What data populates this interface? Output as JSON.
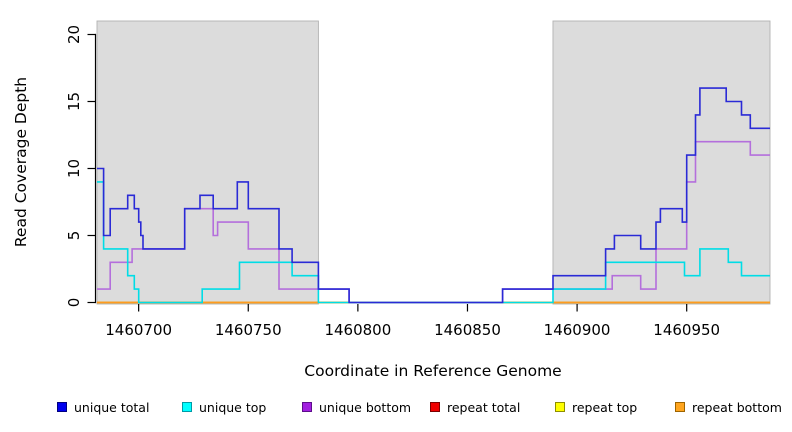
{
  "chart_data": {
    "type": "line",
    "subtype": "step",
    "title": "",
    "xlabel": "Coordinate in Reference Genome",
    "ylabel": "Read Coverage Depth",
    "xlim": [
      1460681,
      1460988
    ],
    "ylim": [
      0,
      21
    ],
    "xticks": [
      1460700,
      1460750,
      1460800,
      1460850,
      1460900,
      1460950
    ],
    "yticks": [
      0,
      5,
      10,
      15,
      20
    ],
    "grid": "off",
    "legend_position": "bottom",
    "plot_background": "#FFFFFF",
    "shade_color": "#DCDCDC",
    "shade_border_color": "#B2B2B2",
    "shaded_regions": [
      {
        "name": "left-flank",
        "from": 1460681,
        "to": 1460782
      },
      {
        "name": "right-flank",
        "from": 1460889,
        "to": 1460988
      }
    ],
    "series": [
      {
        "name": "unique total",
        "line_color": "#2A2AD6",
        "legend_fill": "#0000EE",
        "legend_border": "#000080",
        "zorder": 6,
        "points": [
          [
            1460681,
            10
          ],
          [
            1460684,
            5
          ],
          [
            1460687,
            7
          ],
          [
            1460695,
            8
          ],
          [
            1460698,
            7
          ],
          [
            1460700,
            6
          ],
          [
            1460701,
            5
          ],
          [
            1460702,
            4
          ],
          [
            1460721,
            7
          ],
          [
            1460728,
            8
          ],
          [
            1460734,
            7
          ],
          [
            1460745,
            9
          ],
          [
            1460750,
            7
          ],
          [
            1460764,
            4
          ],
          [
            1460770,
            3
          ],
          [
            1460782,
            1
          ],
          [
            1460796,
            0
          ],
          [
            1460866,
            1
          ],
          [
            1460889,
            2
          ],
          [
            1460913,
            4
          ],
          [
            1460917,
            5
          ],
          [
            1460929,
            4
          ],
          [
            1460936,
            6
          ],
          [
            1460938,
            7
          ],
          [
            1460948,
            6
          ],
          [
            1460950,
            11
          ],
          [
            1460954,
            14
          ],
          [
            1460956,
            16
          ],
          [
            1460968,
            15
          ],
          [
            1460975,
            14
          ],
          [
            1460979,
            13
          ],
          [
            1460988,
            13
          ]
        ]
      },
      {
        "name": "unique top",
        "line_color": "#00DDE6",
        "legend_fill": "#00FFFF",
        "legend_border": "#009AA6",
        "zorder": 5,
        "points": [
          [
            1460681,
            9
          ],
          [
            1460684,
            4
          ],
          [
            1460695,
            2
          ],
          [
            1460698,
            1
          ],
          [
            1460700,
            0
          ],
          [
            1460729,
            1
          ],
          [
            1460746,
            3
          ],
          [
            1460770,
            2
          ],
          [
            1460782,
            0
          ],
          [
            1460889,
            1
          ],
          [
            1460913,
            3
          ],
          [
            1460949,
            2
          ],
          [
            1460956,
            4
          ],
          [
            1460969,
            3
          ],
          [
            1460975,
            2
          ],
          [
            1460988,
            2
          ]
        ]
      },
      {
        "name": "unique bottom",
        "line_color": "#B46FDC",
        "legend_fill": "#A21FE0",
        "legend_border": "#5D0E8B",
        "zorder": 4,
        "points": [
          [
            1460681,
            1
          ],
          [
            1460687,
            3
          ],
          [
            1460697,
            4
          ],
          [
            1460721,
            7
          ],
          [
            1460734,
            5
          ],
          [
            1460736,
            6
          ],
          [
            1460750,
            4
          ],
          [
            1460764,
            1
          ],
          [
            1460796,
            0
          ],
          [
            1460866,
            1
          ],
          [
            1460916,
            2
          ],
          [
            1460929,
            1
          ],
          [
            1460936,
            4
          ],
          [
            1460950,
            9
          ],
          [
            1460954,
            12
          ],
          [
            1460979,
            11
          ],
          [
            1460988,
            11
          ]
        ]
      },
      {
        "name": "repeat total",
        "line_color": "#DD0000",
        "legend_fill": "#EE0000",
        "legend_border": "#7A0000",
        "zorder": 1,
        "points": [
          [
            1460681,
            0
          ],
          [
            1460988,
            0
          ]
        ]
      },
      {
        "name": "repeat top",
        "line_color": "#EEEE00",
        "legend_fill": "#FFFF00",
        "legend_border": "#8F8F00",
        "zorder": 2,
        "points": [
          [
            1460681,
            0
          ],
          [
            1460988,
            0
          ]
        ]
      },
      {
        "name": "repeat bottom",
        "line_color": "#FF9B1E",
        "legend_fill": "#FFA51E",
        "legend_border": "#9E6400",
        "zorder": 3,
        "points": [
          [
            1460681,
            0
          ],
          [
            1460988,
            0
          ]
        ]
      }
    ]
  }
}
